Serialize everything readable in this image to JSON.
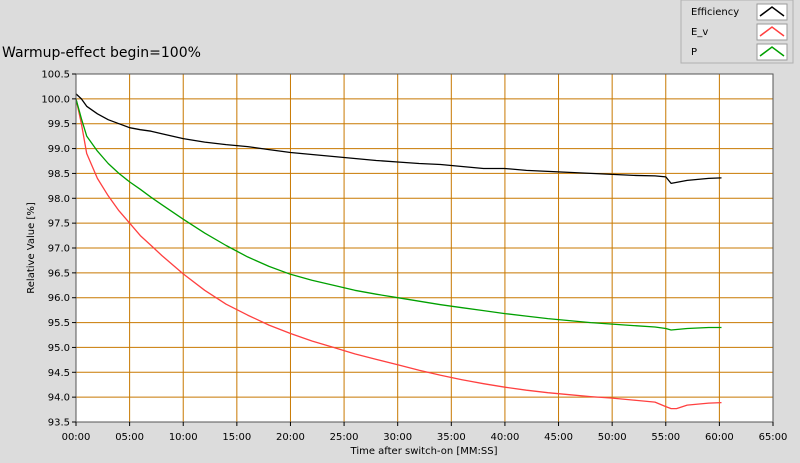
{
  "chart_data": {
    "type": "line",
    "title": "Warmup-effect begin=100%",
    "xlabel": "Time after switch-on [MM:SS]",
    "ylabel": "Relative Value [%]",
    "x_unit": "minutes",
    "xlim": [
      0,
      65
    ],
    "ylim": [
      93.5,
      100.5
    ],
    "x_ticks": [
      "00:00",
      "05:00",
      "10:00",
      "15:00",
      "20:00",
      "25:00",
      "30:00",
      "35:00",
      "40:00",
      "45:00",
      "50:00",
      "55:00",
      "60:00",
      "65:00"
    ],
    "y_ticks": [
      "93.5",
      "94.0",
      "94.5",
      "95.0",
      "95.5",
      "96.0",
      "96.5",
      "97.0",
      "97.5",
      "98.0",
      "98.5",
      "99.0",
      "99.5",
      "100.0",
      "100.5"
    ],
    "grid": true,
    "grid_color": "#c87800",
    "plot_background": "#ffffff",
    "legend_position": "top-right",
    "series": [
      {
        "name": "Efficiency",
        "color": "#000000",
        "x": [
          0,
          0.5,
          1,
          2,
          3,
          4,
          5,
          6,
          7,
          8,
          10,
          12,
          14,
          16,
          18,
          20,
          22,
          24,
          26,
          28,
          30,
          32,
          34,
          36,
          38,
          40,
          42,
          44,
          46,
          48,
          50,
          52,
          54,
          55,
          55.5,
          56,
          57,
          58,
          59,
          60.2
        ],
        "y": [
          100.1,
          100.0,
          99.85,
          99.7,
          99.58,
          99.5,
          99.42,
          99.38,
          99.35,
          99.3,
          99.2,
          99.13,
          99.08,
          99.04,
          98.98,
          98.92,
          98.88,
          98.84,
          98.8,
          98.76,
          98.73,
          98.7,
          98.68,
          98.64,
          98.6,
          98.6,
          98.56,
          98.54,
          98.52,
          98.5,
          98.48,
          98.46,
          98.45,
          98.43,
          98.3,
          98.32,
          98.36,
          98.38,
          98.4,
          98.41
        ]
      },
      {
        "name": "E_v",
        "color": "#ff4040",
        "x": [
          0,
          0.5,
          1,
          2,
          3,
          4,
          5,
          6,
          7,
          8,
          10,
          12,
          14,
          16,
          18,
          20,
          22,
          24,
          26,
          28,
          30,
          32,
          34,
          36,
          38,
          40,
          42,
          44,
          46,
          48,
          50,
          52,
          54,
          55,
          55.5,
          56,
          57,
          58,
          59,
          60.2
        ],
        "y": [
          100.0,
          99.5,
          98.9,
          98.4,
          98.05,
          97.75,
          97.5,
          97.25,
          97.05,
          96.85,
          96.48,
          96.15,
          95.87,
          95.65,
          95.45,
          95.28,
          95.13,
          95.0,
          94.87,
          94.76,
          94.65,
          94.54,
          94.44,
          94.35,
          94.27,
          94.2,
          94.14,
          94.09,
          94.05,
          94.01,
          93.98,
          93.94,
          93.9,
          93.81,
          93.77,
          93.77,
          93.84,
          93.86,
          93.88,
          93.89
        ]
      },
      {
        "name": "P",
        "color": "#00a000",
        "x": [
          0,
          0.5,
          1,
          2,
          3,
          4,
          5,
          6,
          7,
          8,
          10,
          12,
          14,
          16,
          18,
          20,
          22,
          24,
          26,
          28,
          30,
          32,
          34,
          36,
          38,
          40,
          42,
          44,
          46,
          48,
          50,
          52,
          54,
          55,
          55.5,
          56,
          57,
          58,
          59,
          60.2
        ],
        "y": [
          100.0,
          99.6,
          99.25,
          98.95,
          98.7,
          98.5,
          98.33,
          98.18,
          98.02,
          97.87,
          97.58,
          97.3,
          97.05,
          96.82,
          96.63,
          96.47,
          96.35,
          96.25,
          96.15,
          96.07,
          96.0,
          95.93,
          95.86,
          95.8,
          95.74,
          95.68,
          95.63,
          95.58,
          95.54,
          95.5,
          95.47,
          95.44,
          95.41,
          95.38,
          95.35,
          95.36,
          95.38,
          95.39,
          95.4,
          95.4
        ]
      }
    ]
  }
}
